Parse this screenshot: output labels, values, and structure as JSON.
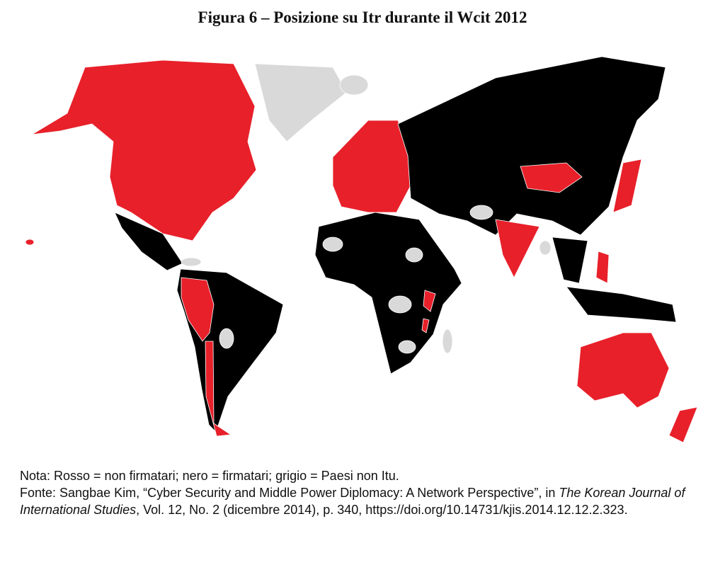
{
  "header": {
    "title": "Figura 6 – Posizione su Itr durante il Wcit 2012"
  },
  "note": "Nota: Rosso = non firmatari; nero = firmatari; grigio = Paesi non Itu.",
  "source": {
    "prefix": "Fonte: Sangbae Kim, “Cyber Security and Middle Power Diplomacy: A Network Perspective”, in ",
    "journal": "The Korean Journal of International Studies",
    "suffix": ", Vol. 12, No. 2 (dicembre 2014), p. 340, https://doi.org/10.14731/kjis.2014.12.12.2.323."
  }
}
